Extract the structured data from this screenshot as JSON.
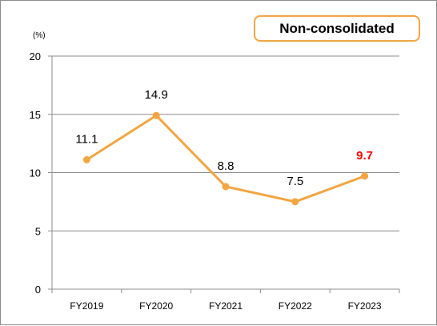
{
  "badge": "Non-consolidated",
  "chart_data": {
    "type": "line",
    "unit_label": "(%)",
    "categories": [
      "FY2019",
      "FY2020",
      "FY2021",
      "FY2022",
      "FY2023"
    ],
    "series": [
      {
        "values": [
          11.1,
          14.9,
          8.8,
          7.5,
          9.7
        ],
        "color": "#f2a541"
      }
    ],
    "ylim": [
      0,
      20
    ],
    "yticks": [
      0,
      5,
      10,
      15,
      20
    ],
    "grid": true,
    "highlight": {
      "index": 4,
      "color": "#ff0000"
    }
  }
}
